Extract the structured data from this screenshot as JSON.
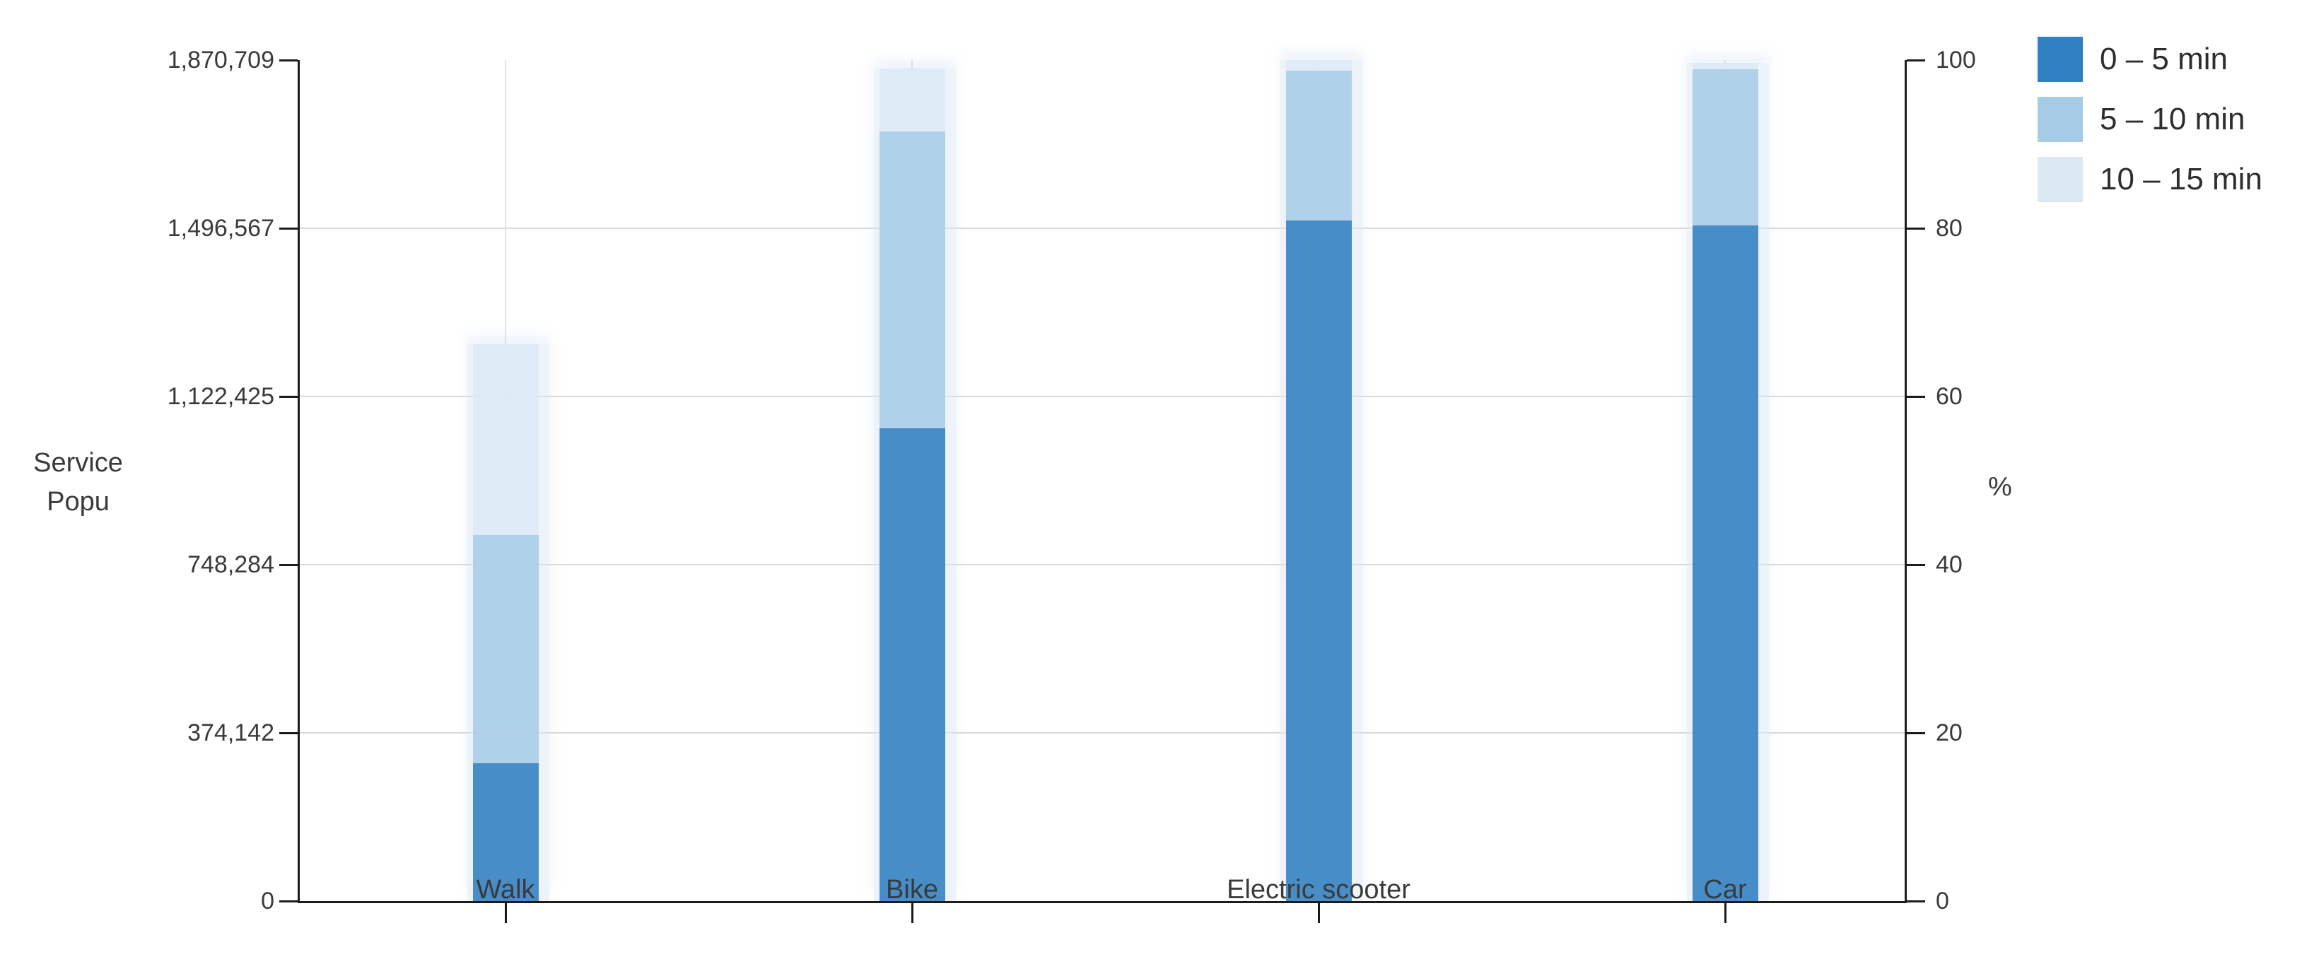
{
  "page": {
    "background": "#ffffff"
  },
  "chart_data": {
    "type": "bar",
    "stacked": true,
    "title": "",
    "categories": [
      "Walk",
      "Bike",
      "Electric scooter",
      "Car"
    ],
    "series": [
      {
        "name": "0 – 5 min",
        "color": "#2F7FC1",
        "pct": [
          16.4,
          56.2,
          80.9,
          80.3
        ],
        "values": [
          306796,
          1051338,
          1513404,
          1502179
        ]
      },
      {
        "name": "5 – 10 min",
        "color": "#A5CBE5",
        "pct": [
          27.1,
          35.3,
          17.8,
          18.6
        ],
        "values": [
          506962,
          660360,
          332986,
          347952
        ]
      },
      {
        "name": "10 – 15 min",
        "color": "#DCE9F5",
        "pct": [
          22.7,
          7.5,
          1.3,
          0.8
        ],
        "values": [
          424651,
          140303,
          24319,
          14966
        ]
      }
    ],
    "totals_pct": [
      66.2,
      99.0,
      100.0,
      99.7
    ],
    "left_axis": {
      "title_lines": [
        "Service",
        "Popu"
      ],
      "max": 1870709,
      "ticks": [
        "0",
        "374,142",
        "748,284",
        "1,122,425",
        "1,496,567",
        "1,870,709"
      ]
    },
    "right_axis": {
      "title": "%",
      "max": 100,
      "ticks": [
        "0",
        "20",
        "40",
        "60",
        "80",
        "100"
      ]
    },
    "legend_position": "top-right",
    "grid": true
  }
}
